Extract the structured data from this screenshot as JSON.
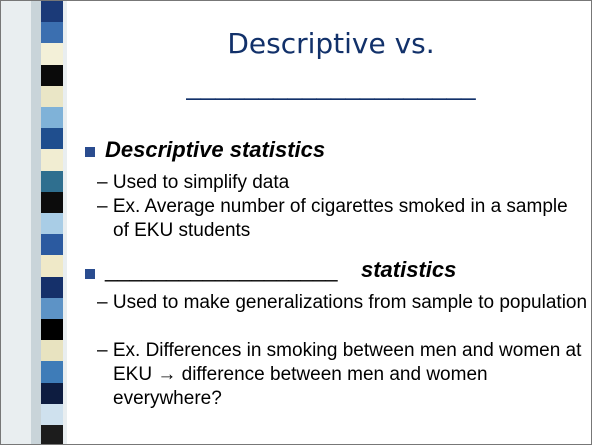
{
  "slide": {
    "title": "Descriptive vs.",
    "title_blank": "____________________",
    "bullets": [
      {
        "heading": "Descriptive statistics",
        "points": [
          "– Used to simplify data",
          "– Ex. Average number of cigarettes smoked in a sample of EKU students"
        ]
      },
      {
        "blank": "___________________",
        "heading": "statistics",
        "points": [
          "– Used to make generalizations from sample to population",
          "– Ex. Differences in smoking between men and women at EKU → difference between men and women everywhere?"
        ]
      }
    ]
  }
}
